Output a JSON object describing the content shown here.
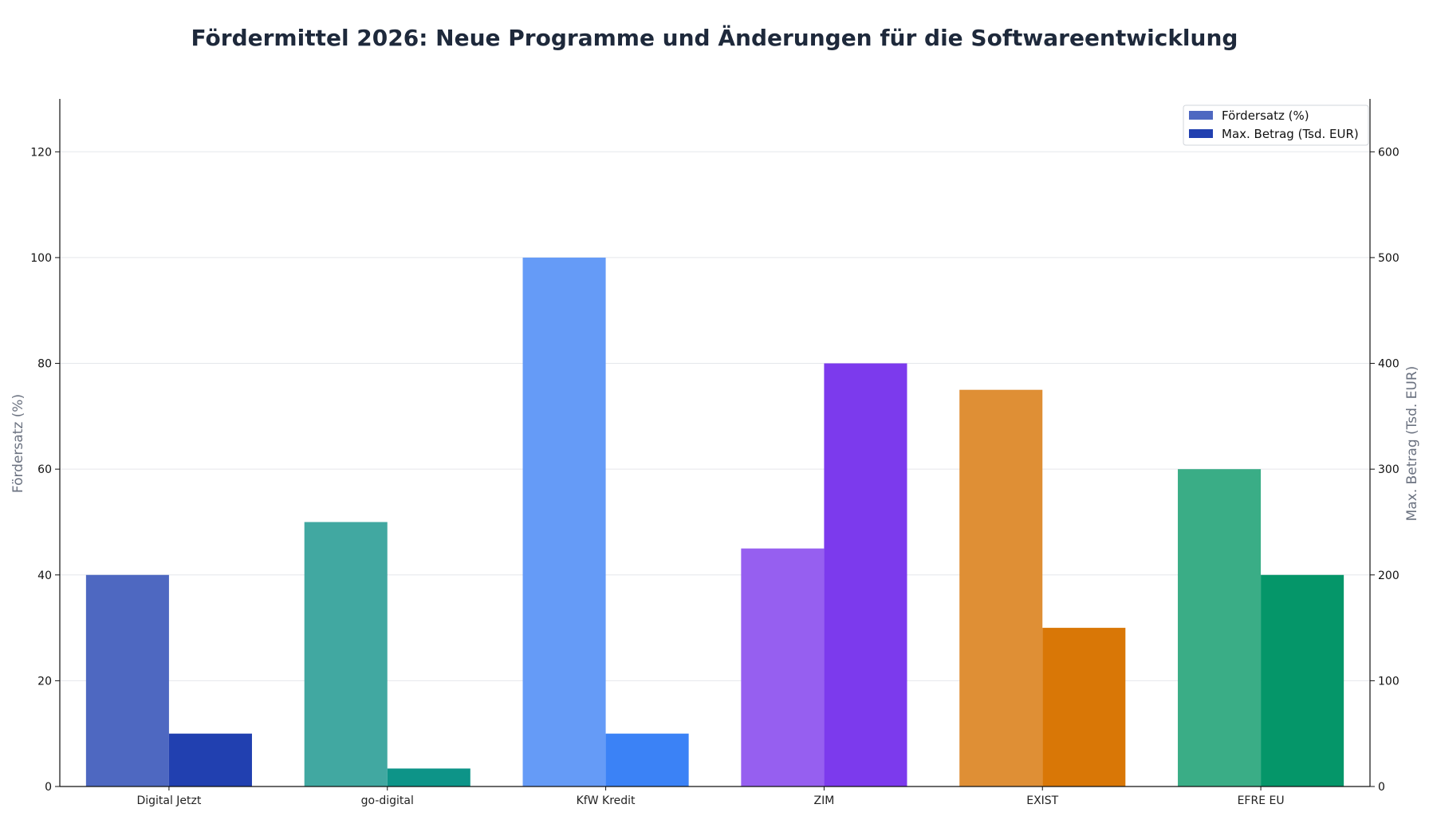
{
  "chart_data": {
    "type": "bar",
    "title": "Fördermittel 2026: Neue Programme und Änderungen für die Softwareentwicklung",
    "categories": [
      "Digital Jetzt",
      "go-digital",
      "KfW Kredit",
      "ZIM",
      "EXIST",
      "EFRE EU"
    ],
    "ylabel_left": "Fördersatz (%)",
    "ylabel_right": "Max. Betrag (Tsd. EUR)",
    "ylim_left": [
      0,
      130
    ],
    "ylim_right": [
      0,
      650
    ],
    "yticks_left": [
      0,
      20,
      40,
      60,
      80,
      100,
      120
    ],
    "yticks_right": [
      0,
      100,
      200,
      300,
      400,
      500,
      600
    ],
    "grid": true,
    "legend_position": "top-right",
    "series": [
      {
        "name": "Fördersatz (%)",
        "axis": "left",
        "values": [
          40,
          50,
          100,
          45,
          75,
          60
        ],
        "colors": [
          "#4e68c1",
          "#41a8a1",
          "#659bf7",
          "#965ff0",
          "#df8f35",
          "#3aad86"
        ],
        "legend_color": "#4e68c1"
      },
      {
        "name": "Max. Betrag (Tsd. EUR)",
        "axis": "right",
        "values": [
          50,
          17,
          50,
          400,
          150,
          200
        ],
        "colors": [
          "#2140b0",
          "#0d9488",
          "#3b82f6",
          "#7c3aed",
          "#d97706",
          "#059669"
        ],
        "legend_color": "#2140b0"
      }
    ]
  }
}
